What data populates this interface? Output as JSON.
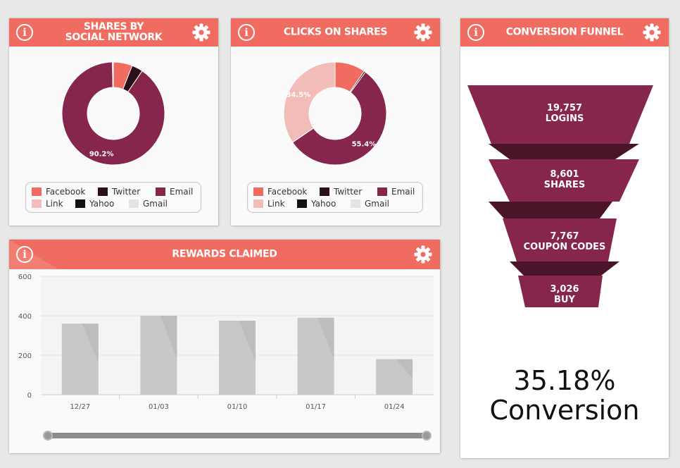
{
  "colors": {
    "header": "#f06b60",
    "facebook": "#f06b60",
    "twitter": "#2a1018",
    "email": "#86264c",
    "link": "#f2bcb8",
    "yahoo": "#111111",
    "gmail": "#e4e4e4",
    "bar": "#c8c8c8",
    "funnel": "#86264c",
    "funnel_dark": "#4a1528"
  },
  "panels": {
    "shares": {
      "title_line1": "SHARES BY",
      "title_line2": "SOCIAL NETWORK",
      "info_icon": "i"
    },
    "clicks": {
      "title": "CLICKS ON SHARES",
      "info_icon": "i"
    },
    "funnel": {
      "title": "CONVERSION FUNNEL",
      "info_icon": "i"
    },
    "rewards": {
      "title": "REWARDS CLAIMED",
      "info_icon": "i"
    }
  },
  "legend": [
    {
      "label": "Facebook",
      "color_key": "facebook"
    },
    {
      "label": "Twitter",
      "color_key": "twitter"
    },
    {
      "label": "Email",
      "color_key": "email"
    },
    {
      "label": "Link",
      "color_key": "link"
    },
    {
      "label": "Yahoo",
      "color_key": "yahoo"
    },
    {
      "label": "Gmail",
      "color_key": "gmail"
    }
  ],
  "funnel": {
    "stages": [
      {
        "value": "19,757",
        "label": "LOGINS"
      },
      {
        "value": "8,601",
        "label": "SHARES"
      },
      {
        "value": "7,767",
        "label": "COUPON CODES"
      },
      {
        "value": "3,026",
        "label": "BUY"
      }
    ],
    "conversion_value": "35.18%",
    "conversion_label": "Conversion"
  },
  "chart_data": [
    {
      "type": "pie",
      "title": "SHARES BY SOCIAL NETWORK",
      "labels": [
        "Facebook",
        "Twitter",
        "Email",
        "Link",
        "Yahoo",
        "Gmail"
      ],
      "values": [
        6.0,
        3.5,
        90.2,
        0.1,
        0.1,
        0.1
      ],
      "data_labels": [
        {
          "label": "Email",
          "text": "90.2%"
        }
      ],
      "donut": true,
      "legend": "bottom"
    },
    {
      "type": "pie",
      "title": "CLICKS ON SHARES",
      "labels": [
        "Facebook",
        "Twitter",
        "Email",
        "Link",
        "Yahoo",
        "Gmail"
      ],
      "values": [
        9.6,
        0.5,
        55.4,
        34.5,
        0.0,
        0.0
      ],
      "data_labels": [
        {
          "label": "Email",
          "text": "55.4%"
        },
        {
          "label": "Link",
          "text": "34.5%"
        }
      ],
      "donut": true,
      "legend": "bottom"
    },
    {
      "type": "bar",
      "title": "REWARDS CLAIMED",
      "categories": [
        "12/27",
        "01/03",
        "01/10",
        "01/17",
        "01/24"
      ],
      "values": [
        360,
        400,
        375,
        390,
        180
      ],
      "ylim": [
        0,
        600
      ],
      "yticks": [
        "0",
        "200",
        "400",
        "600"
      ],
      "grid": true
    }
  ]
}
